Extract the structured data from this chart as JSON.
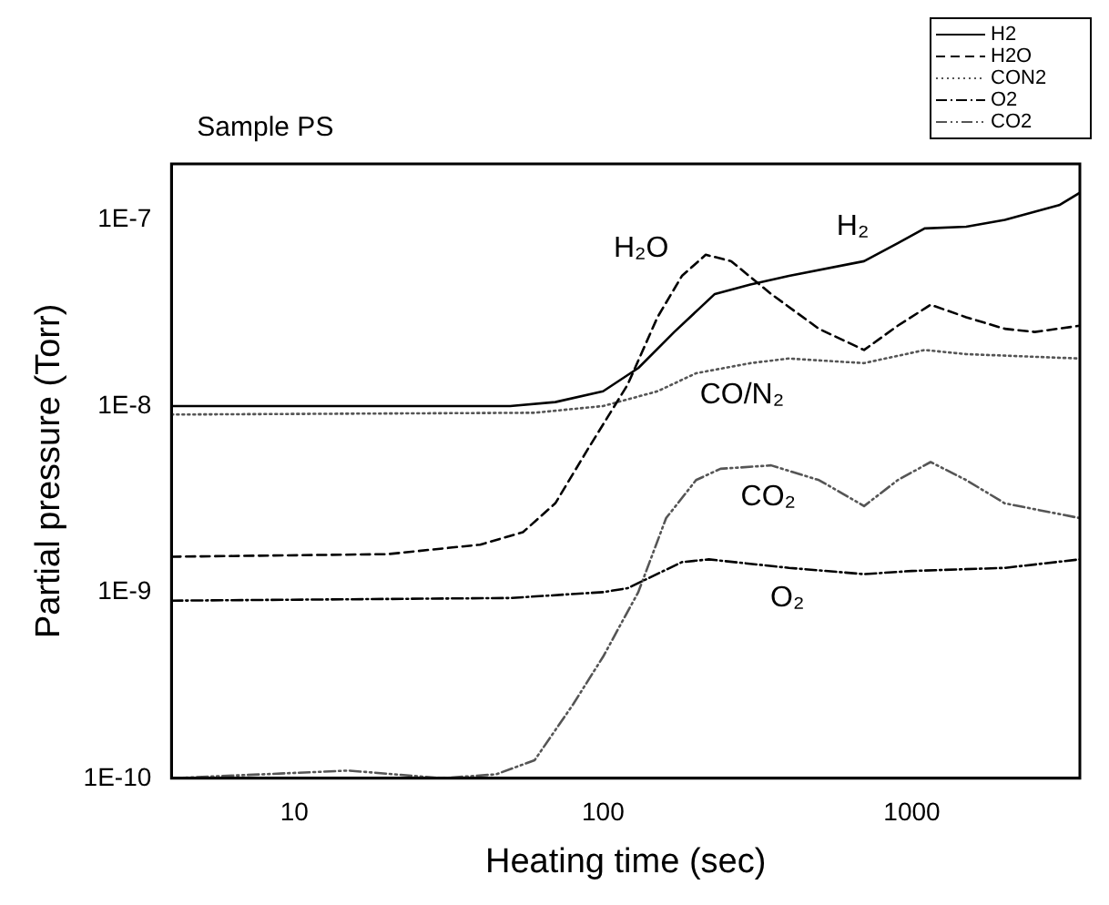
{
  "chart_data": {
    "type": "line",
    "title": "Sample PS",
    "xlabel": "Heating time (sec)",
    "ylabel": "Partial pressure (Torr)",
    "log": "xy",
    "xlim": [
      4,
      3500
    ],
    "ylim": [
      1e-10,
      2e-07
    ],
    "xticks": [
      10,
      100,
      1000
    ],
    "yticks": [
      {
        "value": 1e-10,
        "label": "1E-10"
      },
      {
        "value": 1e-09,
        "label": "1E-9"
      },
      {
        "value": 1e-08,
        "label": "1E-8"
      },
      {
        "value": 1e-07,
        "label": "1E-7"
      }
    ],
    "grid": false,
    "legend": "top right",
    "marker": "none",
    "series": [
      {
        "name": "H2",
        "color": "#000000",
        "line_style": "solid",
        "x": [
          4,
          20,
          50,
          70,
          100,
          130,
          170,
          230,
          300,
          400,
          700,
          900,
          1100,
          1500,
          2000,
          3000,
          3500
        ],
        "values": [
          1e-08,
          1e-08,
          1e-08,
          1.05e-08,
          1.2e-08,
          1.6e-08,
          2.5e-08,
          4e-08,
          4.5e-08,
          5e-08,
          6e-08,
          7.5e-08,
          9e-08,
          9.2e-08,
          1e-07,
          1.2e-07,
          1.4e-07
        ]
      },
      {
        "name": "H2O",
        "color": "#000000",
        "line_style": "dashed",
        "x": [
          4,
          20,
          40,
          55,
          70,
          90,
          120,
          150,
          180,
          215,
          260,
          350,
          500,
          700,
          900,
          1150,
          1500,
          2000,
          2500,
          3500
        ],
        "values": [
          1.55e-09,
          1.6e-09,
          1.8e-09,
          2.1e-09,
          3e-09,
          6e-09,
          1.3e-08,
          3e-08,
          5e-08,
          6.5e-08,
          6e-08,
          4e-08,
          2.6e-08,
          2e-08,
          2.7e-08,
          3.5e-08,
          3e-08,
          2.6e-08,
          2.5e-08,
          2.7e-08
        ]
      },
      {
        "name": "CON2",
        "color": "#555555",
        "line_style": "dotted",
        "x": [
          4,
          60,
          100,
          150,
          200,
          300,
          400,
          700,
          1100,
          1500,
          3500
        ],
        "values": [
          9e-09,
          9.2e-09,
          1e-08,
          1.2e-08,
          1.5e-08,
          1.7e-08,
          1.8e-08,
          1.7e-08,
          2e-08,
          1.9e-08,
          1.8e-08
        ]
      },
      {
        "name": "O2",
        "color": "#000000",
        "line_style": "dashdot",
        "x": [
          4,
          50,
          100,
          120,
          180,
          220,
          400,
          700,
          1000,
          2000,
          3500
        ],
        "values": [
          9e-10,
          9.3e-10,
          1e-09,
          1.05e-09,
          1.45e-09,
          1.5e-09,
          1.35e-09,
          1.25e-09,
          1.3e-09,
          1.35e-09,
          1.5e-09
        ]
      },
      {
        "name": "CO2",
        "color": "#555555",
        "line_style": "dashdotdot",
        "x": [
          4,
          15,
          30,
          45,
          60,
          80,
          100,
          130,
          160,
          200,
          240,
          350,
          500,
          700,
          900,
          1150,
          1500,
          2000,
          3500
        ],
        "values": [
          1e-10,
          1.1e-10,
          1e-10,
          1.05e-10,
          1.25e-10,
          2.5e-10,
          4.5e-10,
          1e-09,
          2.5e-09,
          4e-09,
          4.6e-09,
          4.8e-09,
          4e-09,
          2.9e-09,
          4e-09,
          5e-09,
          4e-09,
          3e-09,
          2.5e-09
        ]
      }
    ],
    "annotations": [
      "H₂O",
      "H₂",
      "CO/N₂",
      "CO₂",
      "O₂"
    ]
  }
}
